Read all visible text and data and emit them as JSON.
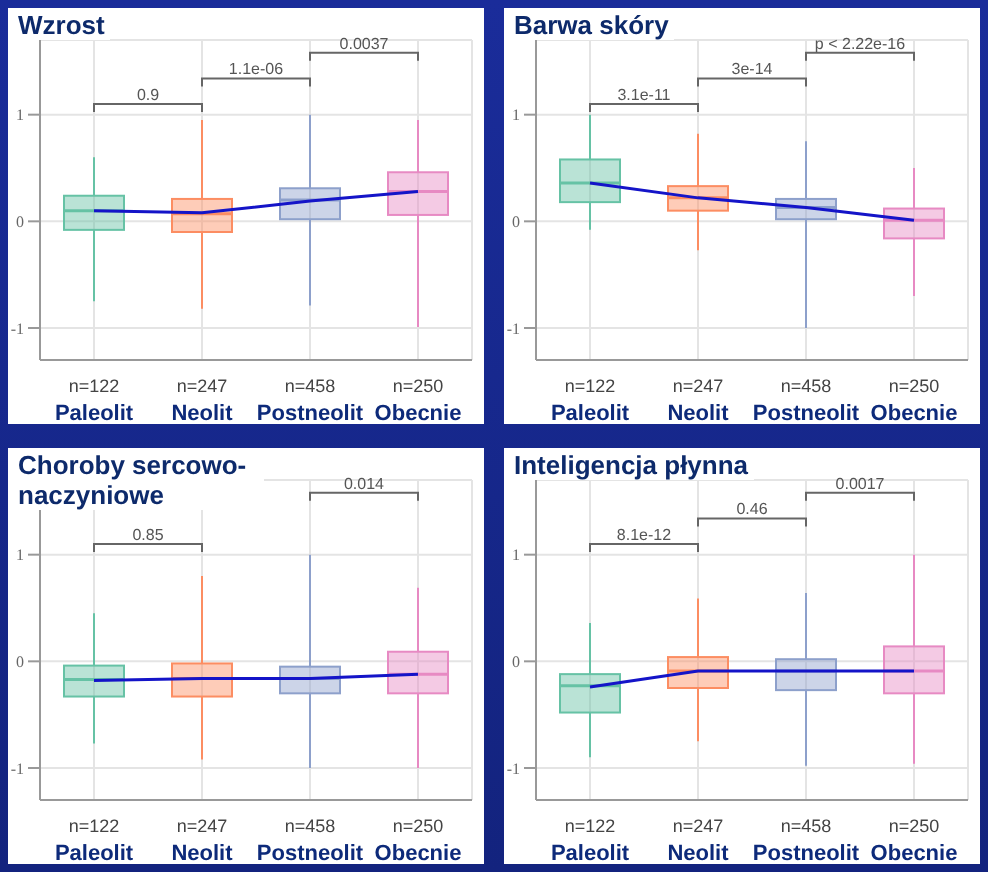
{
  "chart_data": [
    {
      "type": "box",
      "title": "Wzrost",
      "categories": [
        "Paleolit",
        "Neolit",
        "Postneolit",
        "Obecnie"
      ],
      "ylim": [
        -1.3,
        1.7
      ],
      "yticks": [
        -1,
        0,
        1
      ],
      "grid": true,
      "series": [
        {
          "colors": [
            "#66c2a5",
            "#fc8d62",
            "#8da0cb",
            "#e78ac3"
          ],
          "boxes": [
            {
              "low": -0.75,
              "q1": -0.08,
              "median": 0.1,
              "q3": 0.24,
              "high": 0.6
            },
            {
              "low": -0.82,
              "q1": -0.1,
              "median": 0.07,
              "q3": 0.21,
              "high": 0.95
            },
            {
              "low": -0.79,
              "q1": 0.02,
              "median": 0.2,
              "q3": 0.31,
              "high": 1.0
            },
            {
              "low": -0.99,
              "q1": 0.06,
              "median": 0.28,
              "q3": 0.46,
              "high": 0.95
            }
          ]
        },
        {
          "type": "line",
          "color": "#1414c8",
          "values": [
            0.1,
            0.08,
            0.19,
            0.28
          ]
        }
      ],
      "annotations": [
        "n=122",
        "n=247",
        "n=458",
        "n=250",
        "0.9",
        "1.1e-06",
        "0.0037"
      ]
    },
    {
      "type": "box",
      "title": "Barwa skóry",
      "categories": [
        "Paleolit",
        "Neolit",
        "Postneolit",
        "Obecnie"
      ],
      "ylim": [
        -1.3,
        1.7
      ],
      "yticks": [
        -1,
        0,
        1
      ],
      "grid": true,
      "series": [
        {
          "colors": [
            "#66c2a5",
            "#fc8d62",
            "#8da0cb",
            "#e78ac3"
          ],
          "boxes": [
            {
              "low": -0.08,
              "q1": 0.18,
              "median": 0.36,
              "q3": 0.58,
              "high": 1.0
            },
            {
              "low": -0.27,
              "q1": 0.1,
              "median": 0.22,
              "q3": 0.33,
              "high": 0.82
            },
            {
              "low": -1.0,
              "q1": 0.02,
              "median": 0.13,
              "q3": 0.21,
              "high": 0.75
            },
            {
              "low": -0.7,
              "q1": -0.16,
              "median": 0.01,
              "q3": 0.12,
              "high": 0.5
            }
          ]
        },
        {
          "type": "line",
          "color": "#1414c8",
          "values": [
            0.36,
            0.22,
            0.13,
            0.01
          ]
        }
      ],
      "annotations": [
        "n=122",
        "n=247",
        "n=458",
        "n=250",
        "3.1e-11",
        "3e-14",
        "p < 2.22e-16"
      ]
    },
    {
      "type": "box",
      "title": "Choroby sercowo-naczyniowe",
      "categories": [
        "Paleolit",
        "Neolit",
        "Postneolit",
        "Obecnie"
      ],
      "ylim": [
        -1.3,
        1.7
      ],
      "yticks": [
        -1,
        0,
        1
      ],
      "grid": true,
      "series": [
        {
          "colors": [
            "#66c2a5",
            "#fc8d62",
            "#8da0cb",
            "#e78ac3"
          ],
          "boxes": [
            {
              "low": -0.77,
              "q1": -0.33,
              "median": -0.17,
              "q3": -0.04,
              "high": 0.45
            },
            {
              "low": -0.92,
              "q1": -0.33,
              "median": -0.16,
              "q3": -0.02,
              "high": 0.8
            },
            {
              "low": -1.0,
              "q1": -0.3,
              "median": -0.16,
              "q3": -0.05,
              "high": 1.0
            },
            {
              "low": -1.0,
              "q1": -0.3,
              "median": -0.12,
              "q3": 0.09,
              "high": 0.69
            }
          ]
        },
        {
          "type": "line",
          "color": "#1414c8",
          "values": [
            -0.18,
            -0.16,
            -0.16,
            -0.12
          ]
        }
      ],
      "annotations": [
        "n=122",
        "n=247",
        "n=458",
        "n=250",
        "0.85",
        "0.014"
      ]
    },
    {
      "type": "box",
      "title": "Inteligencja płynna",
      "categories": [
        "Paleolit",
        "Neolit",
        "Postneolit",
        "Obecnie"
      ],
      "ylim": [
        -1.3,
        1.7
      ],
      "yticks": [
        -1,
        0,
        1
      ],
      "grid": true,
      "series": [
        {
          "colors": [
            "#66c2a5",
            "#fc8d62",
            "#8da0cb",
            "#e78ac3"
          ],
          "boxes": [
            {
              "low": -0.9,
              "q1": -0.48,
              "median": -0.23,
              "q3": -0.12,
              "high": 0.36
            },
            {
              "low": -0.75,
              "q1": -0.25,
              "median": -0.09,
              "q3": 0.04,
              "high": 0.59
            },
            {
              "low": -0.98,
              "q1": -0.27,
              "median": -0.09,
              "q3": 0.02,
              "high": 0.64
            },
            {
              "low": -0.96,
              "q1": -0.3,
              "median": -0.09,
              "q3": 0.14,
              "high": 1.0
            }
          ]
        },
        {
          "type": "line",
          "color": "#1414c8",
          "values": [
            -0.24,
            -0.09,
            -0.09,
            -0.09
          ]
        }
      ],
      "annotations": [
        "n=122",
        "n=247",
        "n=458",
        "n=250",
        "8.1e-12",
        "0.46",
        "0.0017"
      ]
    }
  ]
}
